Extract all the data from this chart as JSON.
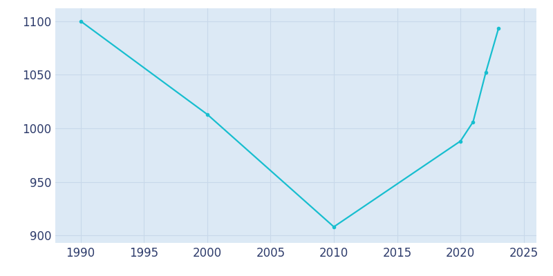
{
  "years": [
    1990,
    2000,
    2010,
    2020,
    2021,
    2022,
    2023
  ],
  "population": [
    1100,
    1013,
    908,
    988,
    1006,
    1052,
    1093
  ],
  "line_color": "#17becf",
  "marker": "o",
  "marker_size": 3,
  "linewidth": 1.6,
  "fig_bg_color": "#ffffff",
  "plot_bg_color": "#dce9f5",
  "xlim": [
    1988,
    2026
  ],
  "ylim": [
    893,
    1112
  ],
  "xticks": [
    1990,
    1995,
    2000,
    2005,
    2010,
    2015,
    2020,
    2025
  ],
  "yticks": [
    900,
    950,
    1000,
    1050,
    1100
  ],
  "tick_color": "#2d3b6b",
  "tick_fontsize": 12,
  "grid_color": "#c8d8ea",
  "grid_alpha": 1.0,
  "grid_linewidth": 0.8
}
